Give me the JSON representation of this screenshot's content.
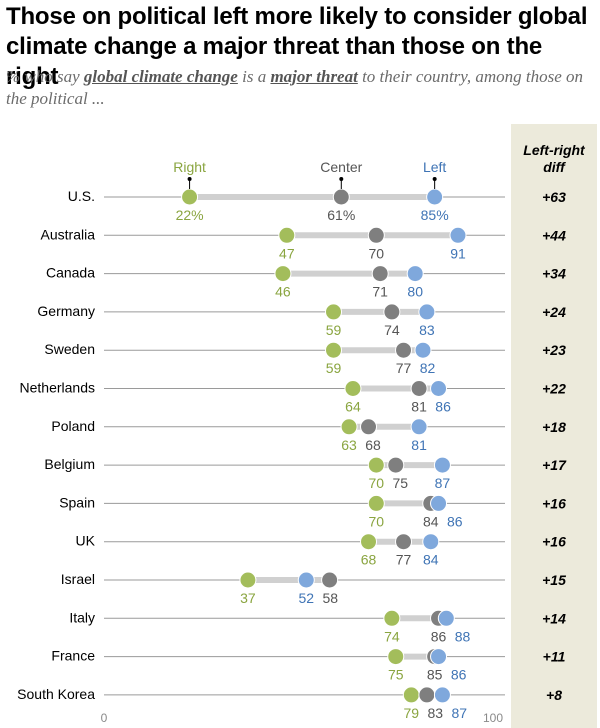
{
  "header": {
    "title": "Those on political left more likely to consider global climate change a major threat than those on the right",
    "subtitle_pre": "% who say ",
    "subtitle_term1": "global climate change",
    "subtitle_mid": " is a ",
    "subtitle_term2": "major threat",
    "subtitle_post": " to their country, among those on the political ..."
  },
  "diff_column": {
    "header": "Left-right diff"
  },
  "colors": {
    "right": "#a3bd5b",
    "center": "#7f7f7f",
    "left": "#7fa8dc",
    "right_text": "#8aa540",
    "center_text": "#555555",
    "left_text": "#3f74b5",
    "connector": "#d0d0d0",
    "axis": "#9a9a9a"
  },
  "chart_data": {
    "type": "dot",
    "title": "Those on political left more likely to consider global climate change a major threat than those on the right",
    "xlim": [
      0,
      100
    ],
    "x_ticks": [
      "0",
      "100"
    ],
    "series_names": [
      "Right",
      "Center",
      "Left"
    ],
    "rows": [
      {
        "country": "U.S.",
        "right": 22,
        "center": 61,
        "left": 85,
        "diff": "+63",
        "labels": [
          "22%",
          "61%",
          "85%"
        ]
      },
      {
        "country": "Australia",
        "right": 47,
        "center": 70,
        "left": 91,
        "diff": "+44",
        "labels": [
          "47",
          "70",
          "91"
        ]
      },
      {
        "country": "Canada",
        "right": 46,
        "center": 71,
        "left": 80,
        "diff": "+34",
        "labels": [
          "46",
          "71",
          "80"
        ]
      },
      {
        "country": "Germany",
        "right": 59,
        "center": 74,
        "left": 83,
        "diff": "+24",
        "labels": [
          "59",
          "74",
          "83"
        ]
      },
      {
        "country": "Sweden",
        "right": 59,
        "center": 77,
        "left": 82,
        "diff": "+23",
        "labels": [
          "59",
          "77",
          "82"
        ]
      },
      {
        "country": "Netherlands",
        "right": 64,
        "center": 81,
        "left": 86,
        "diff": "+22",
        "labels": [
          "64",
          "81",
          "86"
        ]
      },
      {
        "country": "Poland",
        "right": 63,
        "center": 68,
        "left": 81,
        "diff": "+18",
        "labels": [
          "63",
          "68",
          "81"
        ]
      },
      {
        "country": "Belgium",
        "right": 70,
        "center": 75,
        "left": 87,
        "diff": "+17",
        "labels": [
          "70",
          "75",
          "87"
        ]
      },
      {
        "country": "Spain",
        "right": 70,
        "center": 84,
        "left": 86,
        "diff": "+16",
        "labels": [
          "70",
          "84",
          "86"
        ]
      },
      {
        "country": "UK",
        "right": 68,
        "center": 77,
        "left": 84,
        "diff": "+16",
        "labels": [
          "68",
          "77",
          "84"
        ]
      },
      {
        "country": "Israel",
        "right": 37,
        "center": 58,
        "left": 52,
        "diff": "+15",
        "labels": [
          "37",
          "58",
          "52"
        ]
      },
      {
        "country": "Italy",
        "right": 74,
        "center": 86,
        "left": 88,
        "diff": "+14",
        "labels": [
          "74",
          "86",
          "88"
        ]
      },
      {
        "country": "France",
        "right": 75,
        "center": 85,
        "left": 86,
        "diff": "+11",
        "labels": [
          "75",
          "85",
          "86"
        ]
      },
      {
        "country": "South Korea",
        "right": 79,
        "center": 83,
        "left": 87,
        "diff": "+8",
        "labels": [
          "79",
          "83",
          "87"
        ]
      }
    ]
  }
}
